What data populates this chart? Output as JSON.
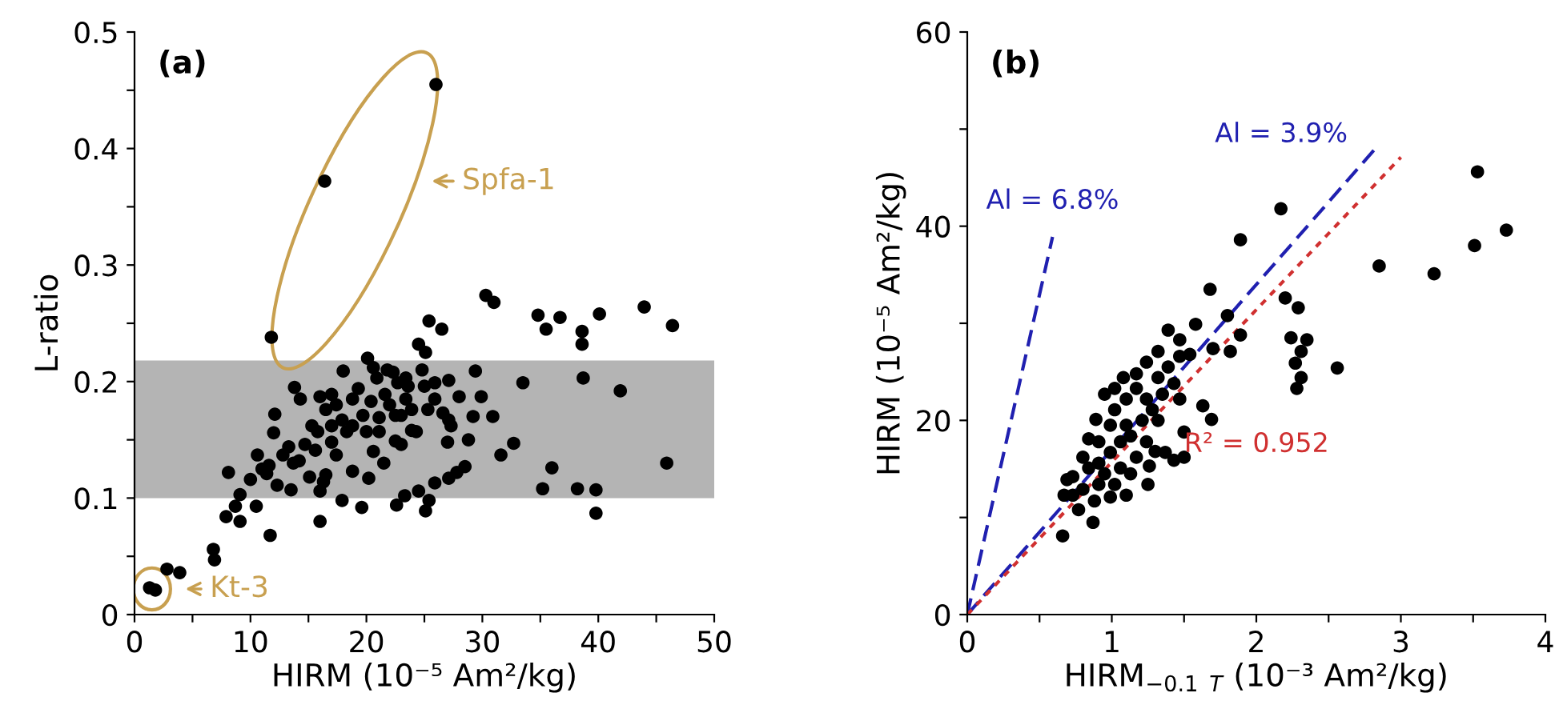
{
  "chart_data": [
    {
      "type": "scatter",
      "title": "(a)",
      "xlabel": "HIRM (10⁻⁵ Am²/kg)",
      "ylabel": "L-ratio",
      "xlim": [
        0,
        50
      ],
      "xticks": [
        0,
        {
          "value": 5,
          "label": null
        },
        10,
        {
          "value": 15,
          "label": null
        },
        20,
        {
          "value": 25,
          "label": null
        },
        30,
        {
          "value": 35,
          "label": null
        },
        40,
        {
          "value": 45,
          "label": null
        },
        50
      ],
      "ylim": [
        0,
        0.5
      ],
      "yticks": [
        0,
        {
          "value": 0.05,
          "label": null
        },
        0.1,
        {
          "value": 0.15,
          "label": null
        },
        0.2,
        {
          "value": 0.25,
          "label": null
        },
        0.3,
        {
          "value": 0.35,
          "label": null
        },
        0.4,
        {
          "value": 0.45,
          "label": null
        },
        0.5
      ],
      "grid": false,
      "legend": false,
      "bands": [
        {
          "axis": "y",
          "from": 0.1,
          "to": 0.218,
          "color": "#b4b4b4"
        }
      ],
      "annotations": [
        "Spfa-1",
        {
          "text": "Kt-3",
          "x": 1.5,
          "y": 0.022
        }
      ],
      "series": [
        {
          "color": "#000000",
          "marker": "circle",
          "x": [
            30.3,
            31.0,
            34.8,
            35.5,
            36.7,
            38.6,
            38.6,
            40.1,
            43.96,
            46.4,
            11.8,
            25.4,
            26.5,
            24.5,
            25.1,
            20.1,
            33.5,
            38.7,
            41.9,
            45.9,
            32.7,
            31.6,
            36.0,
            35.2,
            38.2,
            39.8,
            39.8,
            29.4,
            29.9,
            30.9,
            29.2,
            28.8,
            28.5,
            27.8,
            27.1,
            25.9,
            25.4,
            25.1,
            24.5,
            23.3,
            22.6,
            19.6,
            17.9,
            16.0,
            16.0,
            11.7,
            10.5,
            9.1,
            8.7,
            7.9,
            8.1,
            9.1,
            10.0,
            10.6,
            11.6,
            12.1,
            12.0,
            12.3,
            13.5,
            12.8,
            13.8,
            14.3,
            13.7,
            15.1,
            16.0,
            16.5,
            18.0,
            18.8,
            20.2,
            20.6,
            21.5,
            22.5,
            23.0,
            23.9,
            24.8,
            25.9,
            27.1,
            27.3,
            27.0,
            6.8,
            6.9,
            2.8,
            3.9,
            1.3,
            1.8,
            14.7,
            15.3,
            15.8,
            16.5,
            17.0,
            17.4,
            17.9,
            18.3,
            18.8,
            19.3,
            19.7,
            20.0,
            20.4,
            20.9,
            21.1,
            21.6,
            22.0,
            22.3,
            22.7,
            23.0,
            23.4,
            23.6,
            23.9,
            24.3,
            25.0,
            25.3,
            25.9,
            26.6,
            27.1,
            28.0,
            15.6,
            14.2,
            13.3,
            17.0,
            17.4,
            16.3,
            11.4,
            11.0,
            18.8,
            17.0,
            21.1,
            22.5,
            20.6,
            21.8,
            23.4,
            26.0,
            16.4
          ],
          "values": [
            0.274,
            0.268,
            0.257,
            0.245,
            0.255,
            0.243,
            0.232,
            0.258,
            0.264,
            0.248,
            0.238,
            0.252,
            0.245,
            0.232,
            0.225,
            0.22,
            0.199,
            0.203,
            0.192,
            0.13,
            0.147,
            0.137,
            0.126,
            0.108,
            0.108,
            0.107,
            0.087,
            0.209,
            0.187,
            0.17,
            0.17,
            0.15,
            0.127,
            0.122,
            0.117,
            0.113,
            0.098,
            0.089,
            0.106,
            0.102,
            0.094,
            0.092,
            0.098,
            0.08,
            0.106,
            0.068,
            0.093,
            0.08,
            0.093,
            0.084,
            0.122,
            0.103,
            0.116,
            0.137,
            0.128,
            0.172,
            0.156,
            0.111,
            0.107,
            0.137,
            0.195,
            0.185,
            0.13,
            0.118,
            0.187,
            0.12,
            0.209,
            0.123,
            0.117,
            0.14,
            0.13,
            0.149,
            0.146,
            0.158,
            0.21,
            0.199,
            0.201,
            0.162,
            0.148,
            0.056,
            0.047,
            0.039,
            0.036,
            0.023,
            0.021,
            0.146,
            0.162,
            0.157,
            0.176,
            0.189,
            0.18,
            0.167,
            0.157,
            0.185,
            0.194,
            0.171,
            0.157,
            0.183,
            0.203,
            0.169,
            0.189,
            0.18,
            0.208,
            0.199,
            0.171,
            0.185,
            0.196,
            0.176,
            0.157,
            0.196,
            0.176,
            0.185,
            0.173,
            0.167,
            0.187,
            0.141,
            0.132,
            0.144,
            0.148,
            0.137,
            0.114,
            0.121,
            0.125,
            0.162,
            0.162,
            0.157,
            0.171,
            0.212,
            0.21,
            0.203,
            0.455,
            0.372
          ]
        }
      ]
    },
    {
      "type": "scatter",
      "title": "(b)",
      "xlabel": "HIRM$_{−0.1}$ $_{T}$ (10⁻³ Am²/kg)",
      "ylabel": "HIRM (10⁻⁵ Am²/kg)",
      "xlim": [
        0,
        4
      ],
      "xticks": [
        0,
        {
          "value": 0.5,
          "label": null
        },
        1,
        {
          "value": 1.5,
          "label": null
        },
        2,
        {
          "value": 2.5,
          "label": null
        },
        3,
        {
          "value": 3.5,
          "label": null
        },
        4
      ],
      "ylim": [
        0,
        60
      ],
      "yticks": [
        0,
        {
          "value": 10,
          "label": null
        },
        20,
        {
          "value": 30,
          "label": null
        },
        40,
        {
          "value": 50,
          "label": null
        },
        60
      ],
      "grid": false,
      "legend": false,
      "series": [
        {
          "color": "#000000",
          "marker": "circle",
          "x": [
            3.53,
            3.73,
            3.51,
            2.85,
            3.23,
            2.17,
            1.89,
            1.68,
            2.2,
            2.29,
            2.24,
            2.35,
            2.31,
            2.27,
            2.31,
            2.28,
            2.56,
            1.8,
            1.89,
            1.82,
            1.58,
            1.7,
            1.39,
            1.47,
            1.54,
            1.32,
            1.24,
            1.17,
            1.63,
            1.69,
            1.5,
            1.5,
            1.43,
            1.37,
            1.3,
            1.26,
            1.25,
            1.13,
            1.1,
            0.99,
            0.88,
            0.87,
            0.77,
            0.69,
            0.67,
            0.66,
            0.73,
            0.84,
            0.89,
            0.8,
            0.91,
            0.99,
            1.06,
            0.95,
            1.02,
            1.1,
            1.17,
            1.1,
            1.21,
            1.28,
            1.35,
            1.43,
            1.32,
            1.39,
            1.47,
            0.95,
            1.02,
            0.91,
            0.84,
            1.17,
            1.24,
            1.06,
            1.13,
            0.99,
            0.91,
            1.02,
            1.08,
            1.24,
            1.47,
            1.32,
            0.73,
            0.8
          ],
          "values": [
            45.6,
            39.6,
            38.0,
            35.9,
            35.1,
            41.8,
            38.6,
            33.5,
            32.6,
            31.6,
            28.5,
            28.3,
            27.1,
            25.9,
            24.4,
            23.3,
            25.4,
            30.8,
            28.8,
            27.1,
            29.9,
            27.4,
            29.3,
            28.3,
            26.8,
            27.1,
            26.0,
            24.8,
            21.5,
            20.1,
            18.8,
            16.2,
            15.9,
            16.7,
            16.8,
            15.3,
            13.4,
            14.5,
            12.3,
            12.1,
            11.7,
            9.5,
            10.8,
            13.9,
            12.3,
            8.1,
            14.2,
            18.1,
            20.1,
            16.2,
            15.6,
            16.7,
            17.8,
            22.7,
            21.1,
            22.2,
            23.3,
            19.5,
            20.0,
            21.1,
            22.7,
            23.8,
            24.4,
            25.5,
            26.6,
            14.5,
            13.4,
            13.4,
            15.1,
            16.2,
            17.8,
            15.1,
            18.4,
            19.5,
            17.8,
            23.3,
            24.4,
            22.2,
            22.2,
            20.0,
            12.3,
            12.9
          ]
        },
        {
          "type": "line",
          "name": "Al = 6.8%",
          "color": "#2020b0",
          "line_style": "dashed",
          "x": [
            0,
            0.59
          ],
          "values": [
            0,
            38.9
          ]
        },
        {
          "type": "line",
          "name": "Al = 3.9%",
          "color": "#2020b0",
          "line_style": "dashed",
          "x": [
            0,
            2.83
          ],
          "values": [
            0,
            48.1
          ]
        },
        {
          "type": "line",
          "name": "R² = 0.952",
          "color": "#d03030",
          "line_style": "dotted",
          "x": [
            0,
            3.0
          ],
          "values": [
            0,
            47.1
          ]
        }
      ]
    }
  ]
}
